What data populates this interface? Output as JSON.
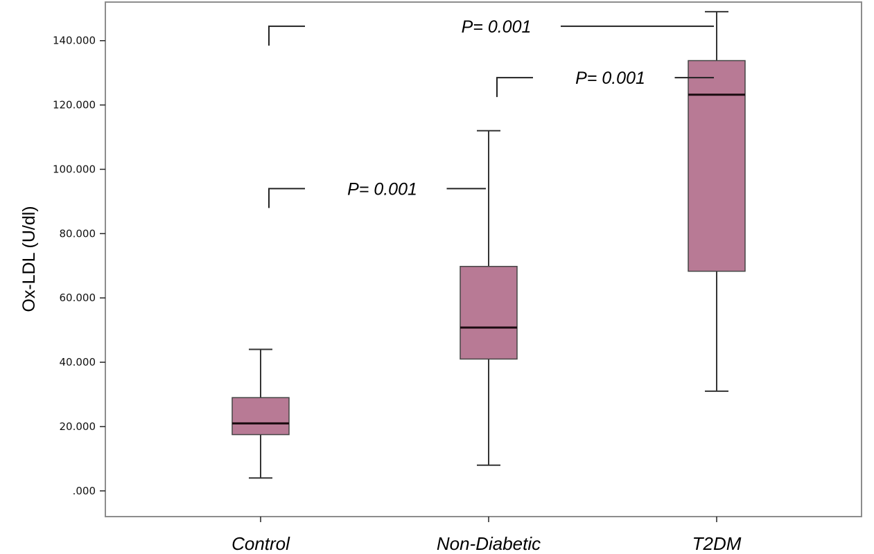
{
  "chart_data": {
    "type": "box",
    "ylabel": "Ox-LDL (U/dl)",
    "xlabel": "",
    "ylim": [
      -8000,
      152000
    ],
    "y_ticks": [
      0,
      20000,
      40000,
      60000,
      80000,
      100000,
      120000,
      140000
    ],
    "y_tick_labels": [
      ".000",
      "20.000",
      "40.000",
      "60.000",
      "80.000",
      "100.000",
      "120.000",
      "140.000"
    ],
    "categories": [
      "Control",
      "Non-Diabetic",
      "T2DM"
    ],
    "box_color": "#b87a95",
    "boxes": [
      {
        "category": "Control",
        "min": 4000,
        "q1": 17500,
        "median": 21000,
        "q3": 29000,
        "max": 44000
      },
      {
        "category": "Non-Diabetic",
        "min": 8000,
        "q1": 41000,
        "median": 50800,
        "q3": 69800,
        "max": 112000
      },
      {
        "category": "T2DM",
        "min": 31000,
        "q1": 68300,
        "median": 123200,
        "q3": 133800,
        "max": 149000
      }
    ],
    "annotations": [
      {
        "text": "P= 0.001",
        "from": "Control",
        "to": "Non-Diabetic",
        "y": 94000
      },
      {
        "text": "P= 0.001",
        "from": "Non-Diabetic",
        "to": "T2DM",
        "y": 128500
      },
      {
        "text": "P= 0.001",
        "from": "Control",
        "to": "T2DM",
        "y": 144500
      }
    ]
  }
}
